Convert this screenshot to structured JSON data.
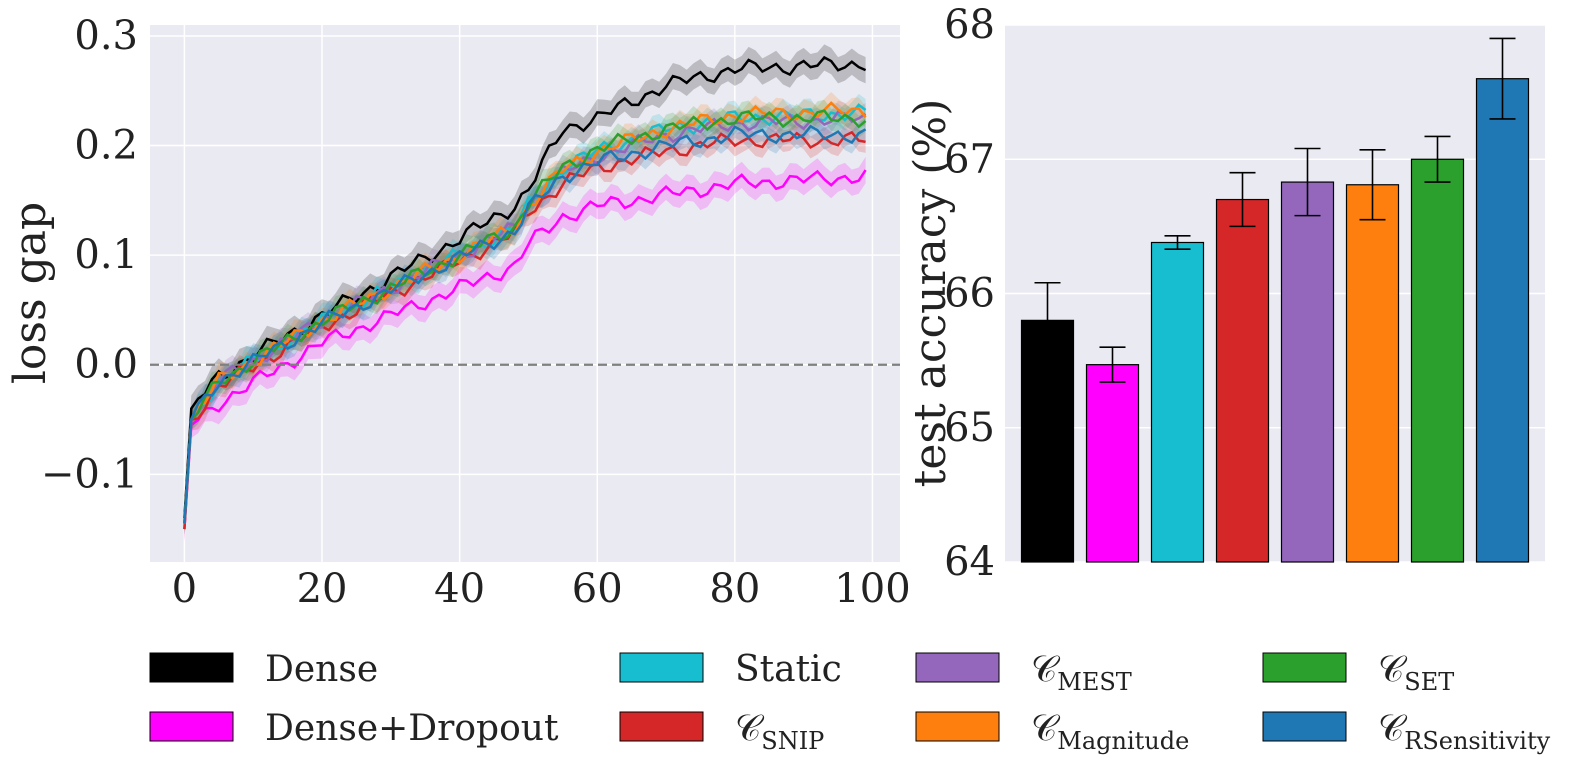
{
  "colors": {
    "plot_bg": "#EAEAF2",
    "grid": "#FFFFFF",
    "dense": "#000000",
    "dense_dropout": "#FF00FF",
    "static": "#17BECF",
    "snip": "#D62728",
    "mest": "#9467BD",
    "magnitude": "#FF7F0E",
    "set": "#2CA02C",
    "rsensitivity": "#1F77B4",
    "zero_line": "#808080"
  },
  "chart_data": [
    {
      "type": "line",
      "xlabel": "",
      "ylabel": "loss gap",
      "xlim": [
        -5,
        104
      ],
      "ylim": [
        -0.18,
        0.31
      ],
      "xticks": [
        0,
        20,
        40,
        60,
        80,
        100
      ],
      "xtick_labels": [
        "0",
        "20",
        "40",
        "60",
        "80",
        "100"
      ],
      "yticks": [
        -0.1,
        0.0,
        0.1,
        0.2,
        0.3
      ],
      "ytick_labels": [
        "−0.1",
        "0.0",
        "0.1",
        "0.2",
        "0.3"
      ],
      "reference_line": 0.0,
      "grid": true,
      "series": [
        {
          "name": "Dense",
          "color_key": "dense",
          "anchors": [
            [
              0,
              -0.14
            ],
            [
              1,
              -0.04
            ],
            [
              5,
              -0.01
            ],
            [
              20,
              0.045
            ],
            [
              40,
              0.115
            ],
            [
              48,
              0.145
            ],
            [
              50,
              0.16
            ],
            [
              55,
              0.215
            ],
            [
              60,
              0.225
            ],
            [
              70,
              0.255
            ],
            [
              80,
              0.27
            ],
            [
              99,
              0.275
            ]
          ],
          "band": 0.012
        },
        {
          "name": "Dense+Dropout",
          "color_key": "dense_dropout",
          "anchors": [
            [
              0,
              -0.15
            ],
            [
              1,
              -0.055
            ],
            [
              5,
              -0.035
            ],
            [
              20,
              0.02
            ],
            [
              40,
              0.07
            ],
            [
              48,
              0.09
            ],
            [
              50,
              0.11
            ],
            [
              55,
              0.135
            ],
            [
              60,
              0.145
            ],
            [
              70,
              0.155
            ],
            [
              80,
              0.165
            ],
            [
              99,
              0.172
            ]
          ],
          "band": 0.012
        },
        {
          "name": "Static",
          "color_key": "static",
          "anchors": [
            [
              0,
              -0.145
            ],
            [
              1,
              -0.05
            ],
            [
              5,
              -0.015
            ],
            [
              20,
              0.04
            ],
            [
              40,
              0.1
            ],
            [
              48,
              0.125
            ],
            [
              50,
              0.145
            ],
            [
              55,
              0.18
            ],
            [
              60,
              0.195
            ],
            [
              70,
              0.215
            ],
            [
              80,
              0.225
            ],
            [
              99,
              0.23
            ]
          ],
          "band": 0.01
        },
        {
          "name": "𝒞",
          "sub": "SNIP",
          "color_key": "snip",
          "anchors": [
            [
              0,
              -0.15
            ],
            [
              1,
              -0.05
            ],
            [
              5,
              -0.02
            ],
            [
              20,
              0.035
            ],
            [
              40,
              0.095
            ],
            [
              48,
              0.12
            ],
            [
              50,
              0.14
            ],
            [
              55,
              0.165
            ],
            [
              60,
              0.18
            ],
            [
              70,
              0.195
            ],
            [
              80,
              0.205
            ],
            [
              99,
              0.205
            ]
          ],
          "band": 0.01
        },
        {
          "name": "𝒞",
          "sub": "MEST",
          "color_key": "mest",
          "anchors": [
            [
              0,
              -0.145
            ],
            [
              1,
              -0.05
            ],
            [
              5,
              -0.015
            ],
            [
              20,
              0.04
            ],
            [
              40,
              0.1
            ],
            [
              48,
              0.125
            ],
            [
              50,
              0.145
            ],
            [
              55,
              0.175
            ],
            [
              60,
              0.19
            ],
            [
              70,
              0.21
            ],
            [
              80,
              0.22
            ],
            [
              99,
              0.225
            ]
          ],
          "band": 0.01
        },
        {
          "name": "𝒞",
          "sub": "Magnitude",
          "color_key": "magnitude",
          "anchors": [
            [
              0,
              -0.145
            ],
            [
              1,
              -0.05
            ],
            [
              5,
              -0.015
            ],
            [
              20,
              0.04
            ],
            [
              40,
              0.1
            ],
            [
              48,
              0.125
            ],
            [
              50,
              0.145
            ],
            [
              55,
              0.178
            ],
            [
              60,
              0.195
            ],
            [
              70,
              0.215
            ],
            [
              80,
              0.228
            ],
            [
              99,
              0.232
            ]
          ],
          "band": 0.01
        },
        {
          "name": "𝒞",
          "sub": "SET",
          "color_key": "set",
          "anchors": [
            [
              0,
              -0.145
            ],
            [
              1,
              -0.05
            ],
            [
              5,
              -0.015
            ],
            [
              20,
              0.04
            ],
            [
              40,
              0.1
            ],
            [
              48,
              0.125
            ],
            [
              50,
              0.148
            ],
            [
              55,
              0.18
            ],
            [
              60,
              0.197
            ],
            [
              70,
              0.215
            ],
            [
              80,
              0.225
            ],
            [
              99,
              0.225
            ]
          ],
          "band": 0.01
        },
        {
          "name": "𝒞",
          "sub": "RSensitivity",
          "color_key": "rsensitivity",
          "anchors": [
            [
              0,
              -0.145
            ],
            [
              1,
              -0.05
            ],
            [
              5,
              -0.015
            ],
            [
              20,
              0.038
            ],
            [
              40,
              0.098
            ],
            [
              48,
              0.122
            ],
            [
              50,
              0.142
            ],
            [
              55,
              0.172
            ],
            [
              60,
              0.185
            ],
            [
              70,
              0.2
            ],
            [
              80,
              0.21
            ],
            [
              99,
              0.21
            ]
          ],
          "band": 0.01
        }
      ]
    },
    {
      "type": "bar",
      "xlabel": "",
      "ylabel": "test accuracy (%)",
      "ylim": [
        64,
        68
      ],
      "yticks": [
        64,
        65,
        66,
        67,
        68
      ],
      "ytick_labels": [
        "64",
        "65",
        "66",
        "67",
        "68"
      ],
      "grid": true,
      "categories": [
        "Dense",
        "Dense+Dropout",
        "Static",
        "𝒞SNIP",
        "𝒞MEST",
        "𝒞Magnitude",
        "𝒞SET",
        "𝒞RSensitivity"
      ],
      "color_keys": [
        "dense",
        "dense_dropout",
        "static",
        "snip",
        "mest",
        "magnitude",
        "set",
        "rsensitivity"
      ],
      "values": [
        65.8,
        65.47,
        66.38,
        66.7,
        66.83,
        66.81,
        67.0,
        67.6
      ],
      "errors": [
        0.28,
        0.13,
        0.05,
        0.2,
        0.25,
        0.26,
        0.17,
        0.3
      ]
    }
  ],
  "legend": {
    "items": [
      {
        "label": "Dense",
        "sub": "",
        "color_key": "dense"
      },
      {
        "label": "Dense+Dropout",
        "sub": "",
        "color_key": "dense_dropout"
      },
      {
        "label": "Static",
        "sub": "",
        "color_key": "static"
      },
      {
        "label": "𝒞",
        "sub": "SNIP",
        "color_key": "snip"
      },
      {
        "label": "𝒞",
        "sub": "MEST",
        "color_key": "mest"
      },
      {
        "label": "𝒞",
        "sub": "Magnitude",
        "color_key": "magnitude"
      },
      {
        "label": "𝒞",
        "sub": "SET",
        "color_key": "set"
      },
      {
        "label": "𝒞",
        "sub": "RSensitivity",
        "color_key": "rsensitivity"
      }
    ]
  }
}
